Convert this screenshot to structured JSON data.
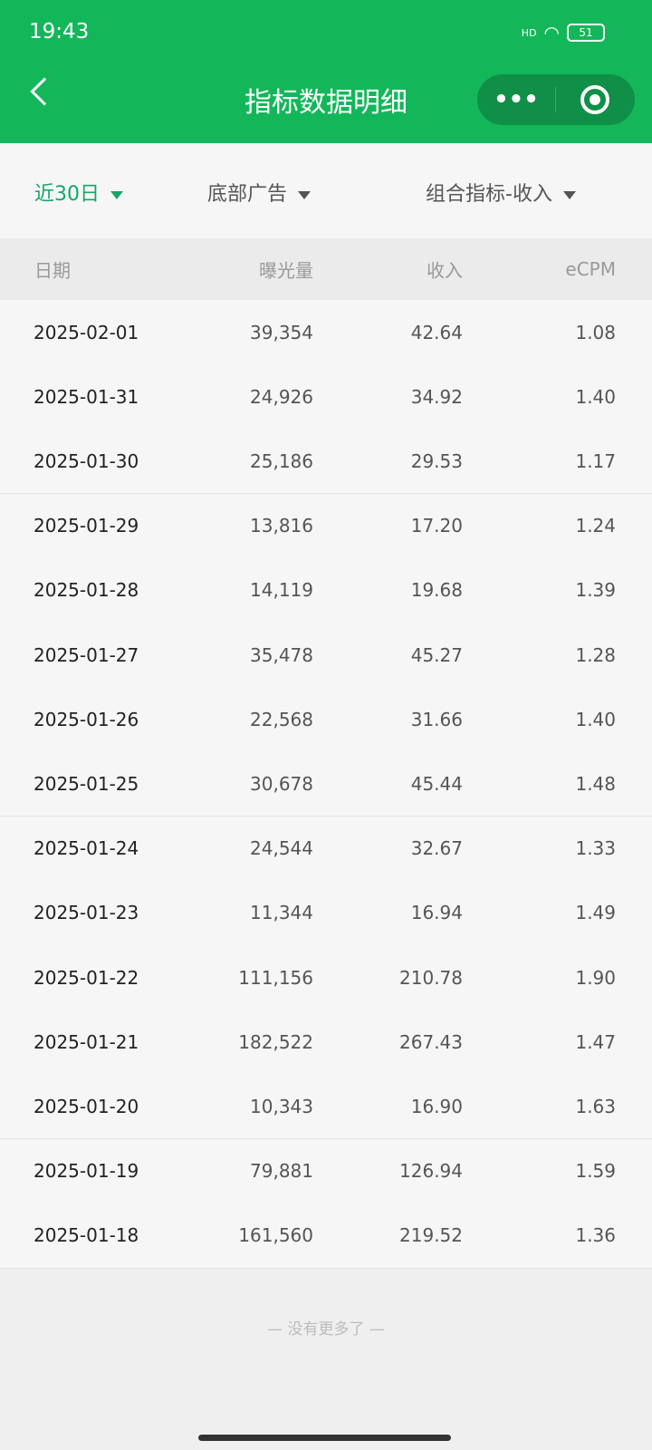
{
  "status_bar": {
    "time": "19:43",
    "network": "HD",
    "battery": "51"
  },
  "nav": {
    "title": "指标数据明细",
    "more_icon": "•••",
    "record_icon": "target-icon"
  },
  "filters": [
    {
      "label": "近30日",
      "active": true
    },
    {
      "label": "底部广告",
      "active": false
    },
    {
      "label": "组合指标-收入",
      "active": false
    }
  ],
  "table": {
    "headers": [
      "日期",
      "曝光量",
      "收入",
      "eCPM"
    ],
    "rows": [
      [
        "2025-02-01",
        "39,354",
        "42.64",
        "1.08"
      ],
      [
        "2025-01-31",
        "24,926",
        "34.92",
        "1.40"
      ],
      [
        "2025-01-30",
        "25,186",
        "29.53",
        "1.17"
      ],
      [
        "2025-01-29",
        "13,816",
        "17.20",
        "1.24"
      ],
      [
        "2025-01-28",
        "14,119",
        "19.68",
        "1.39"
      ],
      [
        "2025-01-27",
        "35,478",
        "45.27",
        "1.28"
      ],
      [
        "2025-01-26",
        "22,568",
        "31.66",
        "1.40"
      ],
      [
        "2025-01-25",
        "30,678",
        "45.44",
        "1.48"
      ],
      [
        "2025-01-24",
        "24,544",
        "32.67",
        "1.33"
      ],
      [
        "2025-01-23",
        "11,344",
        "16.94",
        "1.49"
      ],
      [
        "2025-01-22",
        "111,156",
        "210.78",
        "1.90"
      ],
      [
        "2025-01-21",
        "182,522",
        "267.43",
        "1.47"
      ],
      [
        "2025-01-20",
        "10,343",
        "16.90",
        "1.63"
      ],
      [
        "2025-01-19",
        "79,881",
        "126.94",
        "1.59"
      ],
      [
        "2025-01-18",
        "161,560",
        "219.52",
        "1.36"
      ]
    ]
  },
  "footer": {
    "end_text": "— 没有更多了 —"
  },
  "colors": {
    "header": "#13b75a",
    "accent": "#13a86a"
  }
}
